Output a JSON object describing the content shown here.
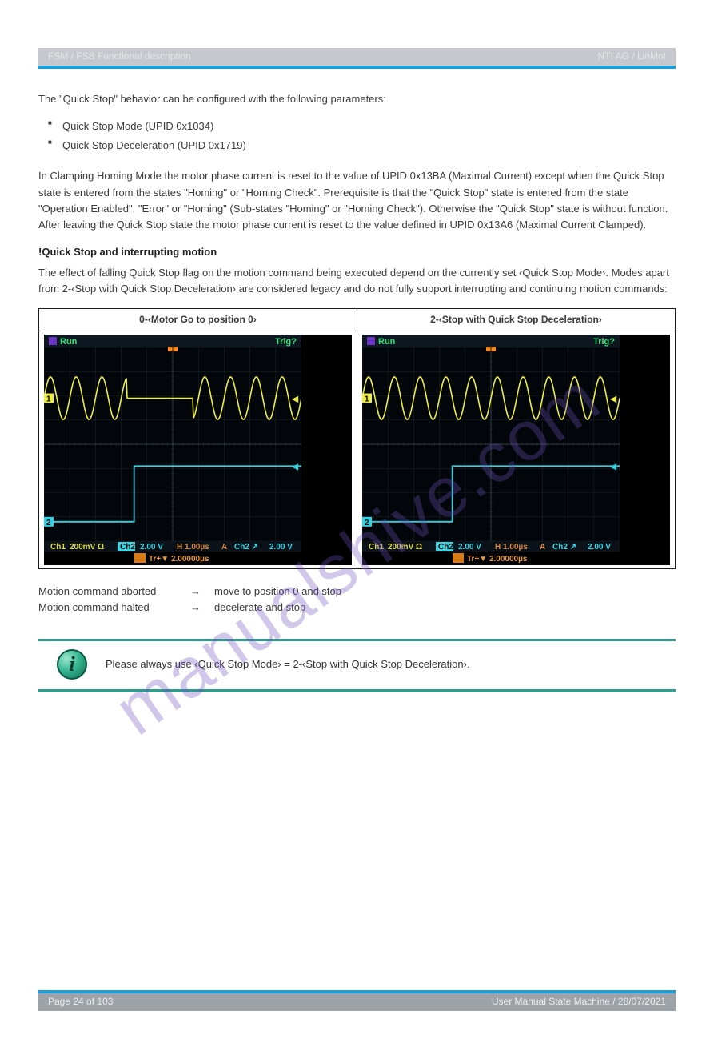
{
  "header": {
    "left": "FSM / FSB  Functional description",
    "right": "NTI AG / LinMot"
  },
  "intro": "The \"Quick Stop\" behavior can be configured with the following parameters:",
  "bullets": [
    "Quick Stop Mode (UPID 0x1034)",
    "Quick Stop Deceleration (UPID 0x1719)"
  ],
  "para2": "In Clamping Homing Mode the motor phase current is reset to the value of UPID 0x13BA (Maximal Current) except when the Quick Stop state is entered from the states \"Homing\" or \"Homing Check\". Prerequisite is that the \"Quick Stop\" state is entered from the state \"Operation Enabled\", \"Error\" or \"Homing\" (Sub-states \"Homing\" or \"Homing Check\"). Otherwise the \"Quick Stop\" state is without function. After leaving the Quick Stop state the motor phase current is reset to the value defined in UPID 0x13A6 (Maximal Current Clamped).",
  "subhead": "!Quick Stop and interrupting motion",
  "para3": "The effect of falling Quick Stop flag on the motion command being executed depend on the currently set ‹Quick Stop Mode›. Modes apart from 2-‹Stop with Quick Stop Deceleration› are considered legacy and do not fully support interrupting and continuing motion commands:",
  "table": {
    "headers": [
      "0-‹Motor Go to position 0›",
      "2-‹Stop with Quick Stop Deceleration›"
    ],
    "left": {
      "topbar": {
        "run": "Run",
        "trig": "Trig?",
        "bg": "#0b0f14"
      },
      "status": {
        "ch1": {
          "label": "Ch1",
          "val": "200mV Ω",
          "color": "#dcdc4a"
        },
        "ch2": {
          "label": "Ch2",
          "val": "2.00 V",
          "color": "#35d7e6"
        },
        "time": {
          "h": "H 1.00µs",
          "a": "A",
          "trig": "Ch2 ↗",
          "trigval": "2.00 V"
        },
        "delay": "Tr+▼ 2.00000µs",
        "delaybg": "#d97a12"
      },
      "wave": {
        "ch1_color": "#eded42",
        "ch2_color": "#2fd3e3",
        "bg": "#02060a",
        "grid": "#2e3a40",
        "plateau_start_div": 3.2,
        "plateau_end_div": 5.8,
        "amplitude_div": 1.6,
        "periods": 10,
        "step_div": 3.5
      }
    },
    "right": {
      "topbar": {
        "run": "Run",
        "trig": "Trig?",
        "bg": "#0b0f14"
      },
      "status": {
        "ch1": {
          "label": "Ch1",
          "val": "200mV Ω",
          "color": "#dcdc4a"
        },
        "ch2": {
          "label": "Ch2",
          "val": "2.00 V",
          "color": "#35d7e6"
        },
        "time": {
          "h": "H 1.00µs",
          "a": "A",
          "trig": "Ch2 ↗",
          "trigval": "2.00 V"
        },
        "delay": "Tr+▼ 2.00000µs",
        "delaybg": "#d97a12"
      },
      "wave": {
        "ch1_color": "#eded42",
        "ch2_color": "#2fd3e3",
        "bg": "#02060a",
        "grid": "#2e3a40",
        "plateau_start_div": -1,
        "plateau_end_div": -1,
        "amplitude_div": 1.6,
        "periods": 10,
        "step_div": 3.5
      }
    }
  },
  "compare": [
    {
      "cue": "Motion command aborted",
      "arrow": "→",
      "result": "move to position 0 and stop"
    },
    {
      "cue": "Motion command halted",
      "arrow": "→",
      "result": "decelerate and stop"
    }
  ],
  "callout": "Please always use ‹Quick Stop Mode› = 2-‹Stop with Quick Stop Deceleration›.",
  "footer": {
    "left": "Page 24 of 103",
    "right": "User Manual State Machine / 28/07/2021"
  },
  "watermark": "manualshive.com"
}
